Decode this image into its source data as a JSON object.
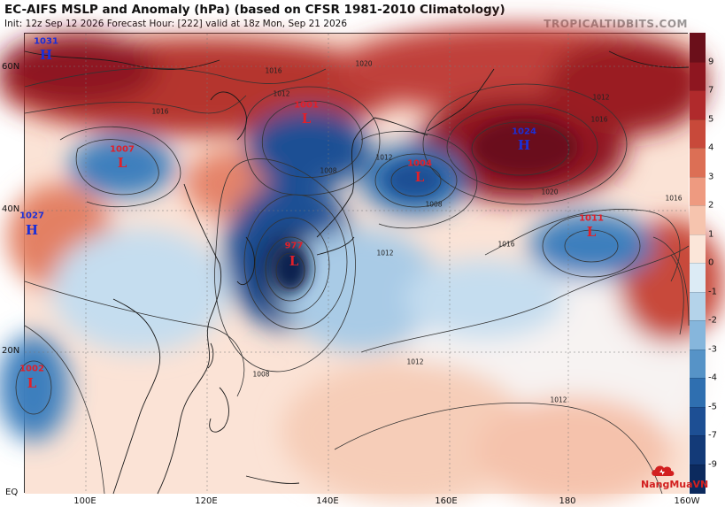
{
  "header": {
    "title": "EC-AIFS MSLP and Anomaly (hPa) (based on CFSR 1981-2010 Climatology)",
    "subtitle": "Init: 12z Sep 12 2026   Forecast Hour: [222]   valid at 18z Mon, Sep 21 2026",
    "brand": "TROPICALTIDBITS.COM"
  },
  "axes": {
    "lat_ticks": [
      "60N",
      "40N",
      "20N",
      "EQ"
    ],
    "lon_ticks": [
      "100E",
      "120E",
      "140E",
      "160E",
      "180",
      "160W"
    ]
  },
  "colorbar": {
    "labels": [
      "9",
      "7",
      "5",
      "4",
      "3",
      "2",
      "1",
      "0",
      "-1",
      "-2",
      "-3",
      "-4",
      "-5",
      "-7",
      "-9"
    ],
    "colors": [
      "#6b0f1a",
      "#8e1620",
      "#b02a2c",
      "#c8493a",
      "#dc6f55",
      "#ee9a80",
      "#f6c4ae",
      "#fbe6d9",
      "#dcebf5",
      "#b4d3ea",
      "#86b6dc",
      "#5693c7",
      "#2f6fb0",
      "#1d4f94",
      "#133a78",
      "#0c2a5e"
    ]
  },
  "pressure_centers": [
    {
      "type": "H",
      "value": "1031"
    },
    {
      "type": "L",
      "value": "1007"
    },
    {
      "type": "H",
      "value": "1027"
    },
    {
      "type": "L",
      "value": "1001"
    },
    {
      "type": "L",
      "value": "977"
    },
    {
      "type": "L",
      "value": "1004"
    },
    {
      "type": "H",
      "value": "1024"
    },
    {
      "type": "L",
      "value": "1011"
    },
    {
      "type": "L",
      "value": "1002"
    }
  ],
  "isobar_labels": [
    "1016",
    "1020",
    "1012",
    "1008",
    "1016",
    "1012",
    "1008",
    "1012",
    "1016",
    "1020",
    "1016",
    "1016",
    "1012",
    "1012",
    "1008",
    "1012"
  ],
  "watermark": "NangMuaVN"
}
